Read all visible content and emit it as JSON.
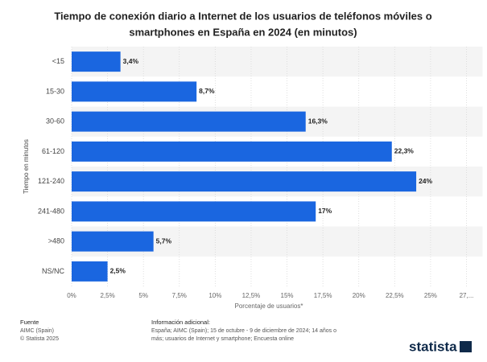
{
  "chart_data": {
    "type": "bar",
    "orientation": "horizontal",
    "title": [
      "Tiempo de conexión diario a Internet de los usuarios de teléfonos móviles o",
      "smartphones en España en 2024 (en minutos)"
    ],
    "categories": [
      "<15",
      "15-30",
      "30-60",
      "61-120",
      "121-240",
      "241-480",
      ">480",
      "NS/NC"
    ],
    "values": [
      3.4,
      8.7,
      16.3,
      22.3,
      24,
      17,
      5.7,
      2.5
    ],
    "value_labels": [
      "3,4%",
      "8,7%",
      "16,3%",
      "22,3%",
      "24%",
      "17%",
      "5,7%",
      "2,5%"
    ],
    "color": "#1a66e0",
    "xlim": [
      0,
      27.5
    ],
    "xticks": [
      {
        "value": 0,
        "label": "0%"
      },
      {
        "value": 2.5,
        "label": "2,5%"
      },
      {
        "value": 5,
        "label": "5%"
      },
      {
        "value": 7.5,
        "label": "7,5%"
      },
      {
        "value": 10,
        "label": "10%"
      },
      {
        "value": 12.5,
        "label": "12,5%"
      },
      {
        "value": 15,
        "label": "15%"
      },
      {
        "value": 17.5,
        "label": "17,5%"
      },
      {
        "value": 20,
        "label": "20%"
      },
      {
        "value": 22.5,
        "label": "22,5%"
      },
      {
        "value": 25,
        "label": "25%"
      },
      {
        "value": 27.5,
        "label": "27,..."
      }
    ],
    "xlabel": "Porcentaje de usuarios*",
    "ylabel": "Tiempo en minutos",
    "grid": true
  },
  "footer": {
    "source_title": "Fuente",
    "source": [
      "AIMC (Spain)",
      "© Statista 2025"
    ],
    "info_title": "Información adicional:",
    "info": [
      "España; AIMC (Spain); 15 de octubre - 9 de diciembre de 2024; 14 años o",
      "más; usuarios de Internet y smartphone; Encuesta online"
    ],
    "logo": "statista"
  }
}
